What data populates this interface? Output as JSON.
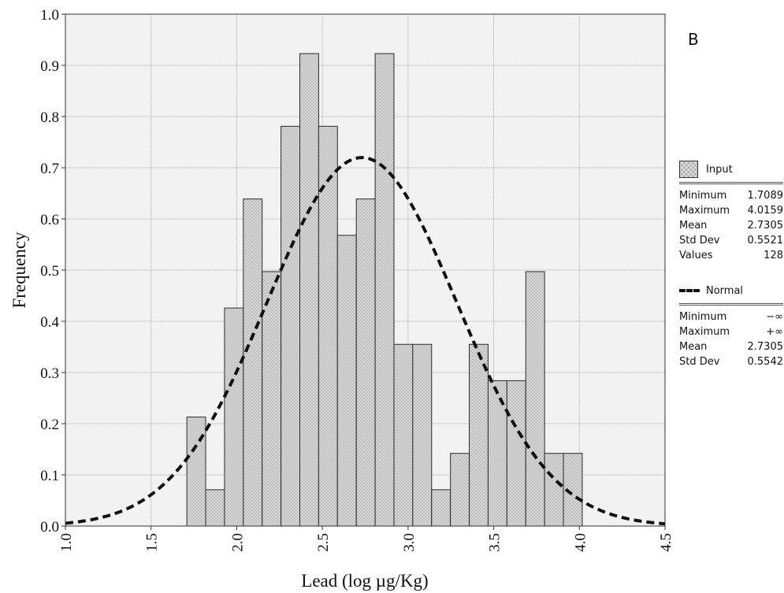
{
  "panel_label": "B",
  "legend": {
    "input": {
      "label": "Input",
      "stats": [
        {
          "name": "Minimum",
          "value": "1.7089"
        },
        {
          "name": "Maximum",
          "value": "4.0159"
        },
        {
          "name": "Mean",
          "value": "2.7305"
        },
        {
          "name": "Std Dev",
          "value": "0.5521"
        },
        {
          "name": "Values",
          "value": "128"
        }
      ]
    },
    "normal": {
      "label": "Normal",
      "stats": [
        {
          "name": "Minimum",
          "value": "−∞"
        },
        {
          "name": "Maximum",
          "value": "+∞"
        },
        {
          "name": "Mean",
          "value": "2.7305"
        },
        {
          "name": "Std Dev",
          "value": "0.5542"
        }
      ]
    }
  },
  "chart_data": {
    "type": "bar",
    "title": "",
    "xlabel": "Lead (log µg/Kg)",
    "ylabel": "Frequency",
    "xlim": [
      1.0,
      4.5
    ],
    "ylim": [
      0.0,
      1.0
    ],
    "x_ticks": [
      "1.0",
      "1.5",
      "2.0",
      "2.5",
      "3.0",
      "3.5",
      "4.0",
      "4.5"
    ],
    "y_ticks": [
      "0.0",
      "0.1",
      "0.2",
      "0.3",
      "0.4",
      "0.5",
      "0.6",
      "0.7",
      "0.8",
      "0.9",
      "1.0"
    ],
    "grid": true,
    "bin_start": 1.7089,
    "bin_width": 0.1099,
    "series": [
      {
        "name": "Input",
        "type": "histogram",
        "color": "#dcdcdc",
        "values": [
          0.213,
          0.071,
          0.426,
          0.639,
          0.497,
          0.781,
          0.923,
          0.781,
          0.568,
          0.639,
          0.923,
          0.355,
          0.355,
          0.071,
          0.142,
          0.355,
          0.284,
          0.284,
          0.497,
          0.142,
          0.142
        ]
      },
      {
        "name": "Normal",
        "type": "line",
        "style": "dashed",
        "color": "#111111",
        "mean": 2.7305,
        "std_dev": 0.5542
      }
    ]
  }
}
